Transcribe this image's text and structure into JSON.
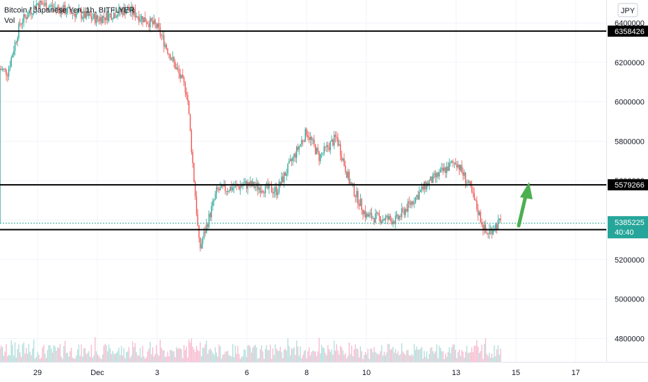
{
  "header": {
    "symbol_title": "Bitcoin / Japanese Yen, 1h, BITFLYER",
    "volume_label": "Vol"
  },
  "currency_badge": "JPY",
  "colors": {
    "up": "#26a69a",
    "down": "#ef5350",
    "level_line": "#000000",
    "current_price": "#26a69a",
    "arrow": "#4caf50",
    "grid": "#f0f3fa"
  },
  "chart_data": {
    "type": "candlestick",
    "title": "Bitcoin / Japanese Yen, 1h, BITFLYER",
    "x_ticks": [
      "29",
      "Dec",
      "3",
      "6",
      "8",
      "10",
      "13",
      "15",
      "17"
    ],
    "y_ticks": [
      "6400000",
      "6200000",
      "6000000",
      "5800000",
      "5600000",
      "5400000",
      "5200000",
      "5000000",
      "4800000"
    ],
    "ylim": [
      4700000,
      6550000
    ],
    "grid": true,
    "horizontal_levels": [
      {
        "label": "6358426",
        "value": 6358426
      },
      {
        "label": "5579266",
        "value": 5579266
      },
      {
        "label": "5352219",
        "value": 5352219
      }
    ],
    "current_price": {
      "label": "5385225",
      "value": 5385225,
      "countdown": "40:40"
    },
    "price_path": [
      {
        "x": "Nov 27",
        "price": 6220000
      },
      {
        "x": "Nov 28",
        "price": 6150000
      },
      {
        "x": "Nov 28",
        "price": 6400000
      },
      {
        "x": "Nov 29",
        "price": 6500000
      },
      {
        "x": "Dec 1",
        "price": 6420000
      },
      {
        "x": "Dec 2",
        "price": 6470000
      },
      {
        "x": "Dec 3",
        "price": 6380000
      },
      {
        "x": "Dec 4",
        "price": 6050000
      },
      {
        "x": "Dec 4",
        "price": 5250000
      },
      {
        "x": "Dec 5",
        "price": 5550000
      },
      {
        "x": "Dec 6",
        "price": 5580000
      },
      {
        "x": "Dec 7",
        "price": 5550000
      },
      {
        "x": "Dec 8",
        "price": 5850000
      },
      {
        "x": "Dec 8",
        "price": 5720000
      },
      {
        "x": "Dec 9",
        "price": 5820000
      },
      {
        "x": "Dec 9",
        "price": 5600000
      },
      {
        "x": "Dec 10",
        "price": 5420000
      },
      {
        "x": "Dec 11",
        "price": 5400000
      },
      {
        "x": "Dec 12",
        "price": 5580000
      },
      {
        "x": "Dec 13",
        "price": 5700000
      },
      {
        "x": "Dec 13",
        "price": 5580000
      },
      {
        "x": "Dec 14",
        "price": 5330000
      },
      {
        "x": "Dec 14",
        "price": 5385000
      }
    ]
  }
}
